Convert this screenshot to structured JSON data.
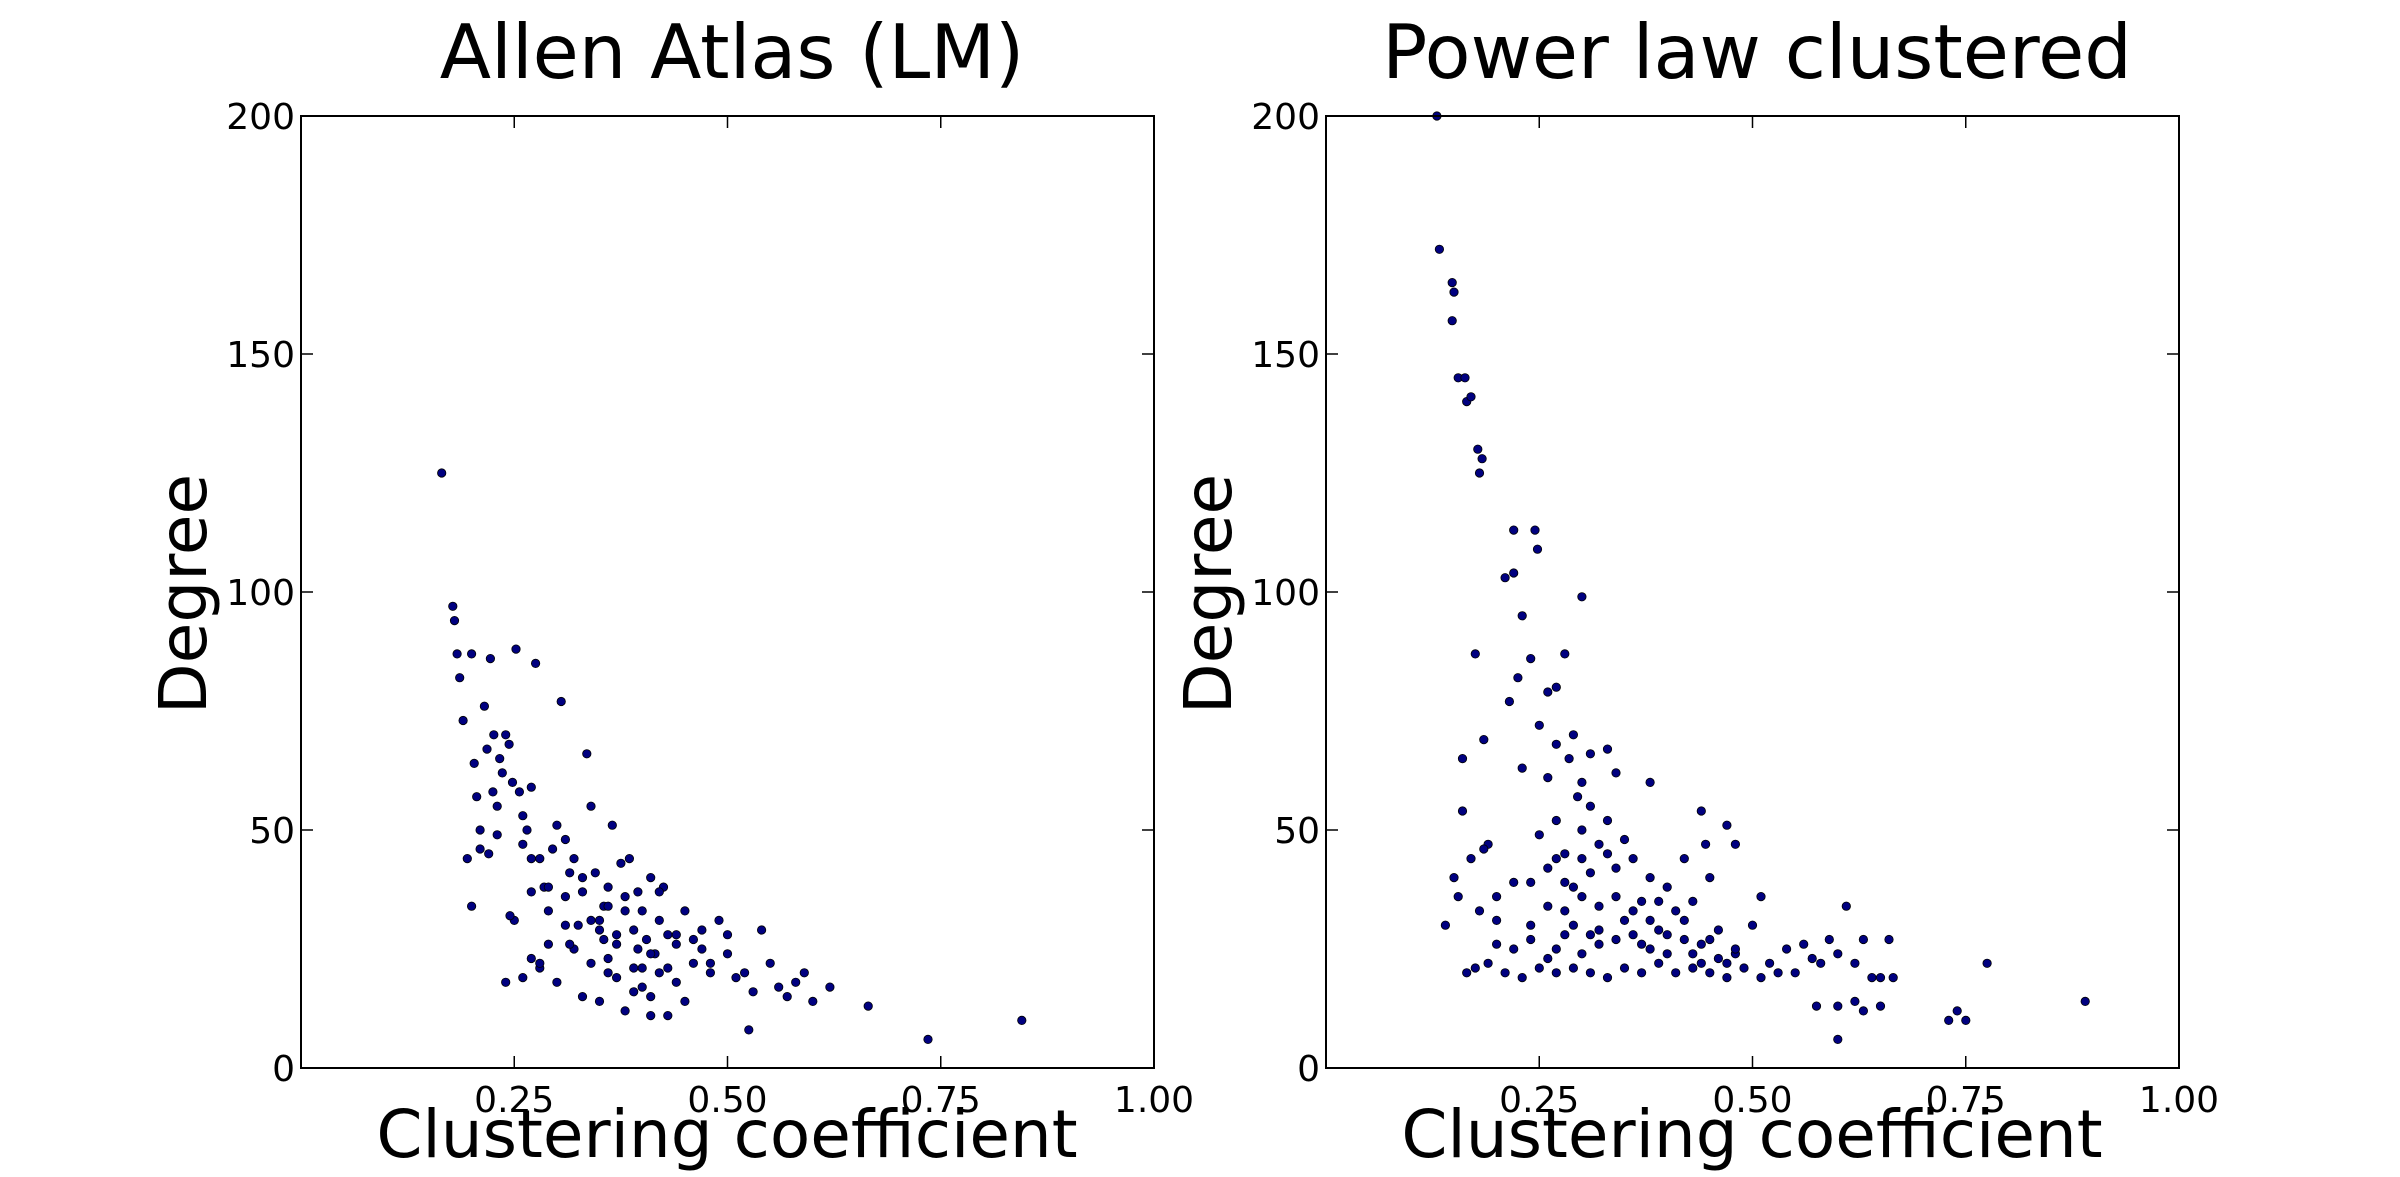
{
  "chart_data": [
    {
      "type": "scatter",
      "title": "Allen Atlas (LM)",
      "xlabel": "Clustering coefficient",
      "ylabel": "Degree",
      "xlim": [
        0.0,
        1.0
      ],
      "ylim": [
        0,
        200
      ],
      "xticks": [
        0.25,
        0.5,
        0.75,
        1.0
      ],
      "xtick_labels": [
        "0.25",
        "0.50",
        "0.75",
        "1.00"
      ],
      "yticks": [
        0,
        50,
        100,
        150,
        200
      ],
      "ytick_labels": [
        "0",
        "50",
        "100",
        "150",
        "200"
      ],
      "grid": false,
      "marker_color": "#000080",
      "points": [
        [
          0.165,
          125
        ],
        [
          0.178,
          97
        ],
        [
          0.18,
          94
        ],
        [
          0.183,
          87
        ],
        [
          0.186,
          82
        ],
        [
          0.19,
          73
        ],
        [
          0.195,
          44
        ],
        [
          0.2,
          87
        ],
        [
          0.203,
          64
        ],
        [
          0.206,
          57
        ],
        [
          0.21,
          46
        ],
        [
          0.215,
          76
        ],
        [
          0.218,
          67
        ],
        [
          0.222,
          86
        ],
        [
          0.226,
          70
        ],
        [
          0.23,
          55
        ],
        [
          0.233,
          65
        ],
        [
          0.236,
          62
        ],
        [
          0.24,
          70
        ],
        [
          0.244,
          68
        ],
        [
          0.248,
          60
        ],
        [
          0.252,
          88
        ],
        [
          0.256,
          58
        ],
        [
          0.26,
          53
        ],
        [
          0.265,
          50
        ],
        [
          0.27,
          59
        ],
        [
          0.275,
          85
        ],
        [
          0.28,
          44
        ],
        [
          0.285,
          38
        ],
        [
          0.29,
          33
        ],
        [
          0.295,
          46
        ],
        [
          0.3,
          51
        ],
        [
          0.305,
          77
        ],
        [
          0.31,
          48
        ],
        [
          0.315,
          41
        ],
        [
          0.32,
          44
        ],
        [
          0.325,
          30
        ],
        [
          0.33,
          37
        ],
        [
          0.335,
          66
        ],
        [
          0.34,
          55
        ],
        [
          0.345,
          41
        ],
        [
          0.35,
          31
        ],
        [
          0.355,
          34
        ],
        [
          0.36,
          38
        ],
        [
          0.365,
          51
        ],
        [
          0.37,
          28
        ],
        [
          0.375,
          43
        ],
        [
          0.38,
          36
        ],
        [
          0.385,
          44
        ],
        [
          0.39,
          29
        ],
        [
          0.395,
          37
        ],
        [
          0.4,
          33
        ],
        [
          0.405,
          27
        ],
        [
          0.41,
          40
        ],
        [
          0.415,
          24
        ],
        [
          0.42,
          31
        ],
        [
          0.425,
          38
        ],
        [
          0.43,
          21
        ],
        [
          0.44,
          28
        ],
        [
          0.45,
          33
        ],
        [
          0.46,
          27
        ],
        [
          0.47,
          25
        ],
        [
          0.48,
          22
        ],
        [
          0.49,
          31
        ],
        [
          0.5,
          24
        ],
        [
          0.51,
          19
        ],
        [
          0.52,
          20
        ],
        [
          0.53,
          16
        ],
        [
          0.54,
          29
        ],
        [
          0.55,
          22
        ],
        [
          0.56,
          17
        ],
        [
          0.57,
          15
        ],
        [
          0.58,
          18
        ],
        [
          0.59,
          20
        ],
        [
          0.6,
          14
        ],
        [
          0.62,
          17
        ],
        [
          0.665,
          13
        ],
        [
          0.735,
          6
        ],
        [
          0.845,
          10
        ],
        [
          0.2,
          34
        ],
        [
          0.21,
          50
        ],
        [
          0.22,
          45
        ],
        [
          0.24,
          18
        ],
        [
          0.25,
          31
        ],
        [
          0.27,
          23
        ],
        [
          0.28,
          21
        ],
        [
          0.29,
          26
        ],
        [
          0.3,
          18
        ],
        [
          0.31,
          30
        ],
        [
          0.32,
          25
        ],
        [
          0.33,
          15
        ],
        [
          0.34,
          22
        ],
        [
          0.35,
          14
        ],
        [
          0.36,
          20
        ],
        [
          0.37,
          26
        ],
        [
          0.38,
          12
        ],
        [
          0.39,
          21
        ],
        [
          0.4,
          17
        ],
        [
          0.41,
          15
        ],
        [
          0.42,
          20
        ],
        [
          0.43,
          11
        ],
        [
          0.44,
          18
        ],
        [
          0.45,
          14
        ],
        [
          0.46,
          22
        ],
        [
          0.48,
          20
        ],
        [
          0.525,
          8
        ],
        [
          0.5,
          28
        ],
        [
          0.36,
          23
        ],
        [
          0.33,
          40
        ],
        [
          0.27,
          44
        ],
        [
          0.29,
          38
        ],
        [
          0.31,
          36
        ],
        [
          0.34,
          31
        ],
        [
          0.37,
          19
        ],
        [
          0.41,
          24
        ],
        [
          0.38,
          33
        ],
        [
          0.42,
          37
        ],
        [
          0.44,
          26
        ],
        [
          0.47,
          29
        ],
        [
          0.27,
          37
        ],
        [
          0.26,
          47
        ],
        [
          0.23,
          49
        ],
        [
          0.225,
          58
        ],
        [
          0.245,
          32
        ],
        [
          0.26,
          19
        ],
        [
          0.28,
          22
        ],
        [
          0.35,
          29
        ],
        [
          0.36,
          34
        ],
        [
          0.395,
          25
        ],
        [
          0.43,
          28
        ],
        [
          0.355,
          27
        ],
        [
          0.315,
          26
        ],
        [
          0.39,
          16
        ],
        [
          0.4,
          21
        ],
        [
          0.41,
          11
        ]
      ]
    },
    {
      "type": "scatter",
      "title": "Power law clustered",
      "xlabel": "Clustering coefficient",
      "ylabel": "Degree",
      "xlim": [
        0.0,
        1.0
      ],
      "ylim": [
        0,
        200
      ],
      "xticks": [
        0.25,
        0.5,
        0.75,
        1.0
      ],
      "xtick_labels": [
        "0.25",
        "0.50",
        "0.75",
        "1.00"
      ],
      "yticks": [
        0,
        50,
        100,
        150,
        200
      ],
      "ytick_labels": [
        "0",
        "50",
        "100",
        "150",
        "200"
      ],
      "grid": false,
      "marker_color": "#000080",
      "points": [
        [
          0.13,
          200
        ],
        [
          0.133,
          172
        ],
        [
          0.148,
          165
        ],
        [
          0.15,
          163
        ],
        [
          0.148,
          157
        ],
        [
          0.155,
          145
        ],
        [
          0.163,
          145
        ],
        [
          0.165,
          140
        ],
        [
          0.17,
          141
        ],
        [
          0.178,
          130
        ],
        [
          0.183,
          128
        ],
        [
          0.18,
          125
        ],
        [
          0.22,
          113
        ],
        [
          0.245,
          113
        ],
        [
          0.248,
          109
        ],
        [
          0.21,
          103
        ],
        [
          0.22,
          104
        ],
        [
          0.3,
          99
        ],
        [
          0.23,
          95
        ],
        [
          0.175,
          87
        ],
        [
          0.24,
          86
        ],
        [
          0.28,
          87
        ],
        [
          0.225,
          82
        ],
        [
          0.26,
          79
        ],
        [
          0.27,
          80
        ],
        [
          0.215,
          77
        ],
        [
          0.25,
          72
        ],
        [
          0.185,
          69
        ],
        [
          0.29,
          70
        ],
        [
          0.31,
          66
        ],
        [
          0.27,
          68
        ],
        [
          0.34,
          62
        ],
        [
          0.16,
          65
        ],
        [
          0.23,
          63
        ],
        [
          0.26,
          61
        ],
        [
          0.38,
          60
        ],
        [
          0.16,
          54
        ],
        [
          0.295,
          57
        ],
        [
          0.31,
          55
        ],
        [
          0.44,
          54
        ],
        [
          0.47,
          51
        ],
        [
          0.19,
          47
        ],
        [
          0.185,
          46
        ],
        [
          0.25,
          49
        ],
        [
          0.27,
          52
        ],
        [
          0.3,
          50
        ],
        [
          0.33,
          52
        ],
        [
          0.35,
          48
        ],
        [
          0.42,
          44
        ],
        [
          0.445,
          47
        ],
        [
          0.48,
          47
        ],
        [
          0.15,
          40
        ],
        [
          0.17,
          44
        ],
        [
          0.18,
          33
        ],
        [
          0.2,
          36
        ],
        [
          0.22,
          39
        ],
        [
          0.24,
          30
        ],
        [
          0.26,
          34
        ],
        [
          0.27,
          44
        ],
        [
          0.29,
          38
        ],
        [
          0.31,
          41
        ],
        [
          0.32,
          29
        ],
        [
          0.34,
          36
        ],
        [
          0.36,
          33
        ],
        [
          0.38,
          31
        ],
        [
          0.39,
          35
        ],
        [
          0.4,
          28
        ],
        [
          0.42,
          31
        ],
        [
          0.44,
          26
        ],
        [
          0.46,
          29
        ],
        [
          0.48,
          24
        ],
        [
          0.5,
          30
        ],
        [
          0.51,
          36
        ],
        [
          0.52,
          22
        ],
        [
          0.54,
          25
        ],
        [
          0.55,
          20
        ],
        [
          0.56,
          26
        ],
        [
          0.57,
          23
        ],
        [
          0.58,
          22
        ],
        [
          0.59,
          27
        ],
        [
          0.6,
          24
        ],
        [
          0.61,
          34
        ],
        [
          0.62,
          22
        ],
        [
          0.63,
          27
        ],
        [
          0.64,
          19
        ],
        [
          0.65,
          19
        ],
        [
          0.66,
          27
        ],
        [
          0.665,
          19
        ],
        [
          0.6,
          13
        ],
        [
          0.6,
          6
        ],
        [
          0.575,
          13
        ],
        [
          0.62,
          14
        ],
        [
          0.63,
          12
        ],
        [
          0.65,
          13
        ],
        [
          0.73,
          10
        ],
        [
          0.74,
          12
        ],
        [
          0.75,
          10
        ],
        [
          0.775,
          22
        ],
        [
          0.89,
          14
        ],
        [
          0.14,
          30
        ],
        [
          0.155,
          36
        ],
        [
          0.165,
          20
        ],
        [
          0.175,
          21
        ],
        [
          0.19,
          22
        ],
        [
          0.2,
          26
        ],
        [
          0.21,
          20
        ],
        [
          0.23,
          19
        ],
        [
          0.25,
          21
        ],
        [
          0.27,
          20
        ],
        [
          0.29,
          21
        ],
        [
          0.31,
          20
        ],
        [
          0.33,
          19
        ],
        [
          0.35,
          21
        ],
        [
          0.37,
          20
        ],
        [
          0.39,
          22
        ],
        [
          0.41,
          20
        ],
        [
          0.43,
          21
        ],
        [
          0.45,
          20
        ],
        [
          0.47,
          19
        ],
        [
          0.49,
          21
        ],
        [
          0.51,
          19
        ],
        [
          0.53,
          20
        ],
        [
          0.28,
          28
        ],
        [
          0.3,
          24
        ],
        [
          0.32,
          26
        ],
        [
          0.34,
          27
        ],
        [
          0.36,
          28
        ],
        [
          0.38,
          25
        ],
        [
          0.4,
          24
        ],
        [
          0.42,
          27
        ],
        [
          0.44,
          22
        ],
        [
          0.46,
          23
        ],
        [
          0.48,
          25
        ],
        [
          0.22,
          25
        ],
        [
          0.24,
          27
        ],
        [
          0.26,
          23
        ],
        [
          0.28,
          33
        ],
        [
          0.3,
          36
        ],
        [
          0.32,
          34
        ],
        [
          0.34,
          42
        ],
        [
          0.36,
          44
        ],
        [
          0.38,
          40
        ],
        [
          0.4,
          38
        ],
        [
          0.43,
          35
        ],
        [
          0.45,
          40
        ],
        [
          0.28,
          45
        ],
        [
          0.3,
          44
        ],
        [
          0.33,
          45
        ],
        [
          0.37,
          35
        ],
        [
          0.39,
          29
        ],
        [
          0.41,
          33
        ],
        [
          0.27,
          25
        ],
        [
          0.29,
          30
        ],
        [
          0.31,
          28
        ],
        [
          0.35,
          31
        ],
        [
          0.37,
          26
        ],
        [
          0.43,
          24
        ],
        [
          0.45,
          27
        ],
        [
          0.47,
          22
        ],
        [
          0.2,
          31
        ],
        [
          0.24,
          39
        ],
        [
          0.26,
          42
        ],
        [
          0.28,
          39
        ],
        [
          0.32,
          47
        ],
        [
          0.33,
          67
        ],
        [
          0.285,
          65
        ],
        [
          0.3,
          60
        ]
      ]
    }
  ]
}
